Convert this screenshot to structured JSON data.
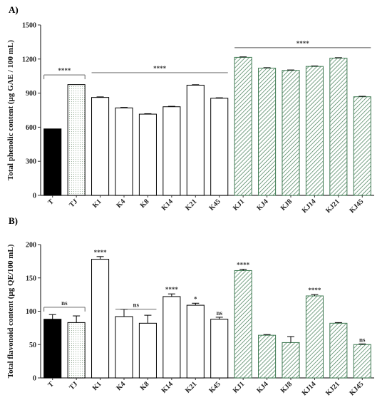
{
  "colors": {
    "solid": "#000000",
    "dotted": "#b8cbb8",
    "open": "#ffffff",
    "hatched": "#3f7a52",
    "axis": "#333333"
  },
  "chart_data": [
    {
      "type": "bar",
      "panel_label": "A)",
      "ylabel": "Total phenolic content (µg GAE / 100 mL)",
      "ylim": [
        0,
        1500
      ],
      "yticks": [
        0,
        300,
        600,
        900,
        1200,
        1500
      ],
      "categories": [
        "T",
        "TJ",
        "K1",
        "K4",
        "K8",
        "K14",
        "K21",
        "K45",
        "KJ1",
        "KJ4",
        "KJ8",
        "KJ14",
        "KJ21",
        "KJ45"
      ],
      "values": [
        585,
        975,
        862,
        770,
        715,
        780,
        970,
        855,
        1215,
        1120,
        1100,
        1135,
        1208,
        868
      ],
      "errors": [
        0,
        0,
        5,
        4,
        4,
        4,
        4,
        4,
        4,
        4,
        4,
        4,
        4,
        4
      ],
      "fills": [
        "solid",
        "dotted",
        "open",
        "open",
        "open",
        "open",
        "open",
        "open",
        "hatched",
        "hatched",
        "hatched",
        "hatched",
        "hatched",
        "hatched"
      ],
      "annotations": [
        {
          "label": "****",
          "from": 0,
          "to": 1,
          "y": 1060,
          "style": "bracket"
        },
        {
          "label": "****",
          "from": 2,
          "to": 7,
          "y": 1080,
          "style": "line"
        },
        {
          "label": "****",
          "from": 8,
          "to": 13,
          "y": 1300,
          "style": "line"
        }
      ]
    },
    {
      "type": "bar",
      "panel_label": "B)",
      "ylabel": "Total flavonoid content (µg QE/100 mL)",
      "ylim": [
        0,
        200
      ],
      "yticks": [
        0,
        50,
        100,
        150,
        200
      ],
      "categories": [
        "T",
        "TJ",
        "K1",
        "K4",
        "K8",
        "K14",
        "K21",
        "K45",
        "KJ1",
        "KJ4",
        "KJ8",
        "KJ14",
        "KJ21",
        "KJ45"
      ],
      "values": [
        88,
        83,
        178,
        92,
        82,
        122,
        109,
        88,
        161,
        64,
        53,
        123,
        82,
        50
      ],
      "errors": [
        7,
        10,
        4,
        11,
        12,
        4,
        3,
        3,
        2,
        1,
        9,
        2,
        1,
        1
      ],
      "fills": [
        "solid",
        "dotted",
        "open",
        "open",
        "open",
        "open",
        "open",
        "open",
        "hatched",
        "hatched",
        "hatched",
        "hatched",
        "hatched",
        "hatched"
      ],
      "bar_labels": [
        "",
        "",
        "****",
        "",
        "",
        "****",
        "*",
        "ns",
        "****",
        "",
        "",
        "****",
        "",
        "ns"
      ],
      "annotations": [
        {
          "label": "ns",
          "from": 0,
          "to": 1,
          "y": 106,
          "style": "bracket"
        },
        {
          "label": "ns",
          "from": 3,
          "to": 4,
          "y": 103,
          "style": "line"
        }
      ]
    }
  ]
}
